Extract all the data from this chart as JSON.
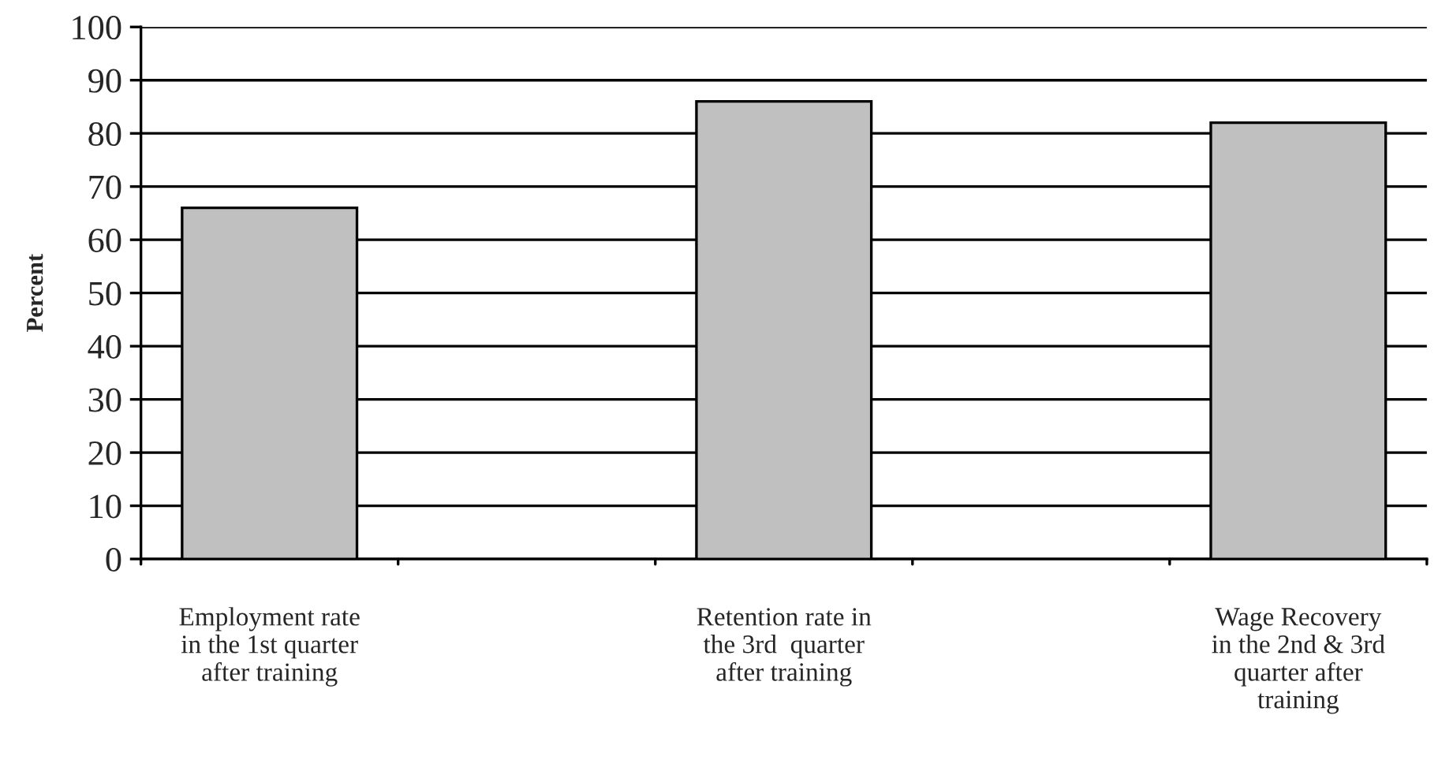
{
  "chart_data": {
    "type": "bar",
    "ylabel": "Percent",
    "categories": [
      "Employment rate\nin the 1st quarter\nafter training",
      null,
      "Retention rate in\nthe 3rd  quarter\nafter training",
      null,
      "Wage Recovery\nin the 2nd & 3rd\nquarter after\ntraining"
    ],
    "values": [
      66,
      null,
      86,
      null,
      82
    ],
    "color": "#c0c0c0",
    "ylim": [
      0,
      100
    ],
    "yticks": [
      0,
      10,
      20,
      30,
      40,
      50,
      60,
      70,
      80,
      90,
      100
    ],
    "grid": "y",
    "legend": false
  }
}
